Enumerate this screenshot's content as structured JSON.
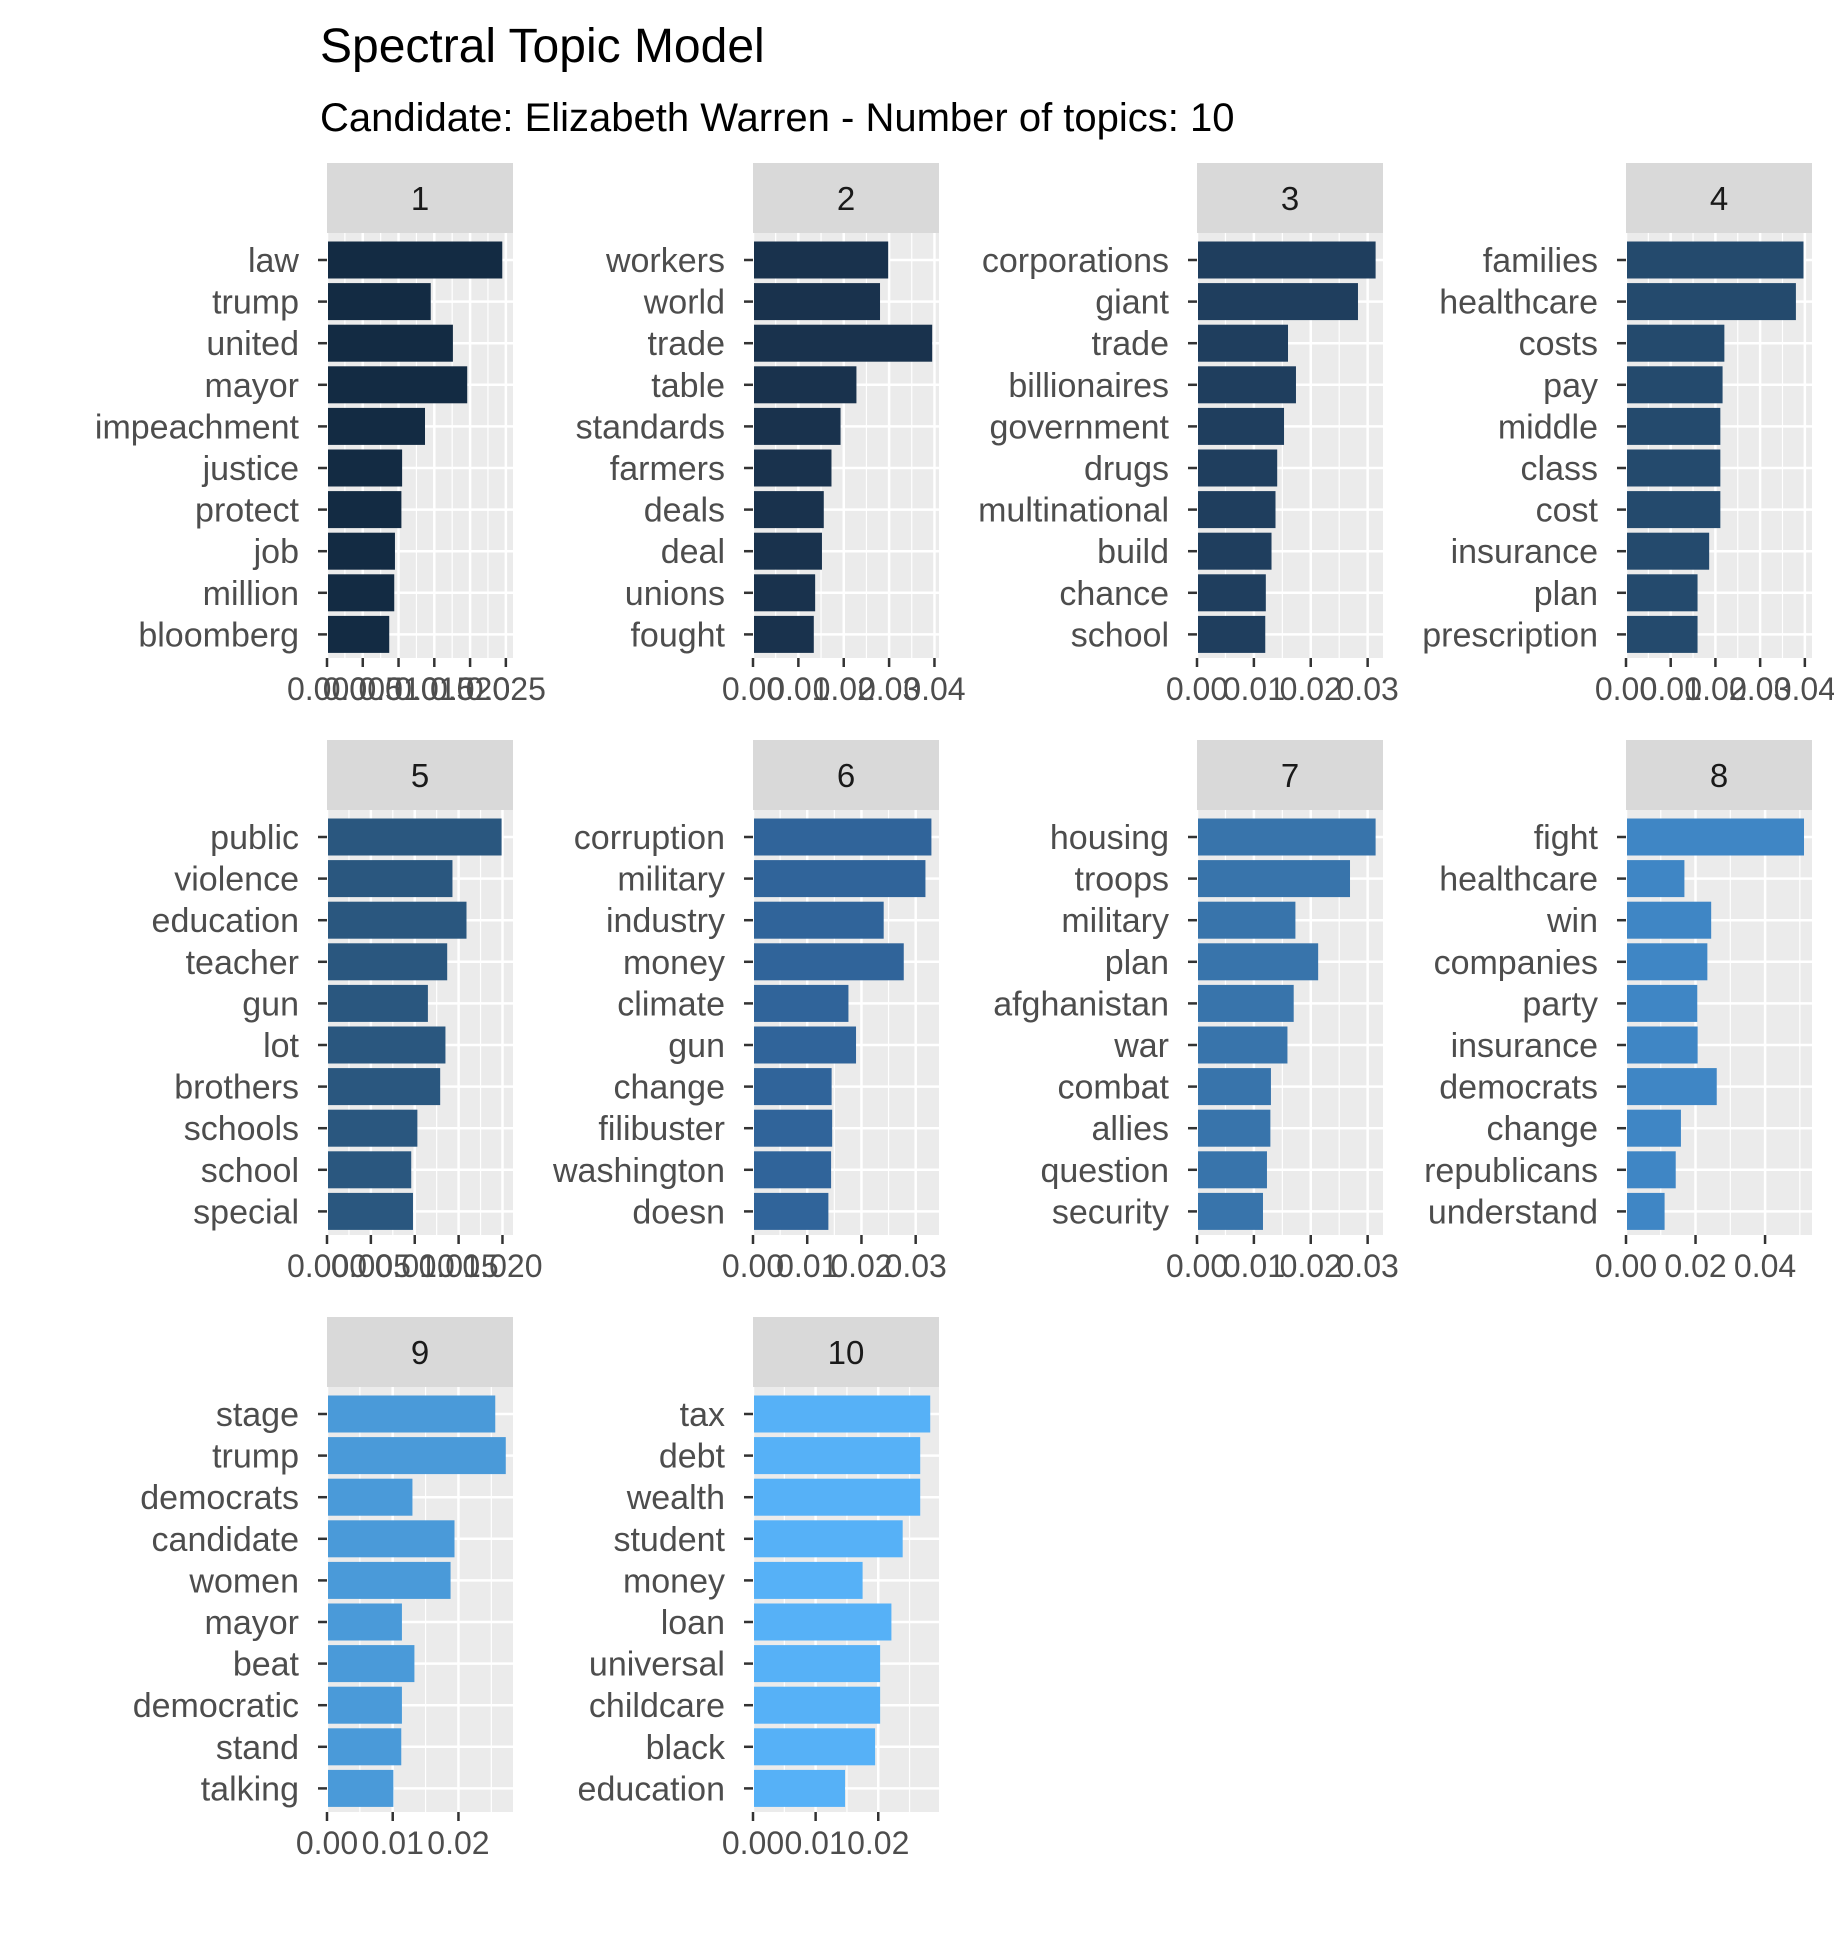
{
  "chart_data": {
    "type": "bar",
    "orientation": "horizontal",
    "facet": "wrap",
    "ncol": 4,
    "title": "Spectral Topic Model",
    "subtitle": "Candidate: Elizabeth Warren - Number of topics: 10",
    "grid": true,
    "legend": "none",
    "panels": [
      {
        "strip": "1",
        "color": "#132B43",
        "xlim": [
          0,
          0.026
        ],
        "ticks": [
          0,
          0.005,
          0.01,
          0.015,
          0.02,
          0.025
        ],
        "tick_labels": [
          "0.000",
          "0.005",
          "0.010",
          "0.015",
          "0.020",
          "0.025"
        ],
        "categories": [
          "law",
          "trump",
          "united",
          "mayor",
          "impeachment",
          "justice",
          "protect",
          "job",
          "million",
          "bloomberg"
        ],
        "values": [
          0.0245,
          0.0145,
          0.0176,
          0.0196,
          0.0137,
          0.0105,
          0.0104,
          0.0095,
          0.0094,
          0.0087
        ]
      },
      {
        "strip": "2",
        "color": "#19324D",
        "xlim": [
          0,
          0.041
        ],
        "ticks": [
          0,
          0.01,
          0.02,
          0.03,
          0.04
        ],
        "tick_labels": [
          "0.00",
          "0.01",
          "0.02",
          "0.03",
          "0.04"
        ],
        "categories": [
          "workers",
          "world",
          "trade",
          "table",
          "standards",
          "farmers",
          "deals",
          "deal",
          "unions",
          "fought"
        ],
        "values": [
          0.0298,
          0.028,
          0.0395,
          0.0228,
          0.0193,
          0.0173,
          0.0156,
          0.0152,
          0.0137,
          0.0134
        ]
      },
      {
        "strip": "3",
        "color": "#1F3E5E",
        "xlim": [
          0,
          0.0327
        ],
        "ticks": [
          0,
          0.01,
          0.02,
          0.03
        ],
        "tick_labels": [
          "0.00",
          "0.01",
          "0.02",
          "0.03"
        ],
        "categories": [
          "corporations",
          "giant",
          "trade",
          "billionaires",
          "government",
          "drugs",
          "multinational",
          "build",
          "chance",
          "school"
        ],
        "values": [
          0.0314,
          0.0283,
          0.016,
          0.0174,
          0.0153,
          0.0141,
          0.0138,
          0.0131,
          0.0121,
          0.012
        ]
      },
      {
        "strip": "4",
        "color": "#244A6D",
        "xlim": [
          0,
          0.0416
        ],
        "ticks": [
          0,
          0.01,
          0.02,
          0.03,
          0.04
        ],
        "tick_labels": [
          "0.00",
          "0.01",
          "0.02",
          "0.03",
          "0.04"
        ],
        "categories": [
          "families",
          "healthcare",
          "costs",
          "pay",
          "middle",
          "class",
          "cost",
          "insurance",
          "plan",
          "prescription"
        ],
        "values": [
          0.0397,
          0.038,
          0.022,
          0.0216,
          0.0211,
          0.0211,
          0.0211,
          0.0186,
          0.016,
          0.016
        ]
      },
      {
        "strip": "5",
        "color": "#2A577F",
        "xlim": [
          0,
          0.0212
        ],
        "ticks": [
          0,
          0.005,
          0.01,
          0.015,
          0.02
        ],
        "tick_labels": [
          "0.000",
          "0.005",
          "0.010",
          "0.015",
          "0.020"
        ],
        "categories": [
          "public",
          "violence",
          "education",
          "teacher",
          "gun",
          "lot",
          "brothers",
          "schools",
          "school",
          "special"
        ],
        "values": [
          0.0199,
          0.0143,
          0.0159,
          0.0137,
          0.0115,
          0.0135,
          0.0129,
          0.0103,
          0.0096,
          0.0098
        ]
      },
      {
        "strip": "6",
        "color": "#30649A",
        "xlim": [
          0,
          0.0343
        ],
        "ticks": [
          0,
          0.01,
          0.02,
          0.03
        ],
        "tick_labels": [
          "0.00",
          "0.01",
          "0.02",
          "0.03"
        ],
        "categories": [
          "corruption",
          "military",
          "industry",
          "money",
          "climate",
          "gun",
          "change",
          "filibuster",
          "washington",
          "doesn"
        ],
        "values": [
          0.0329,
          0.0318,
          0.0241,
          0.0278,
          0.0176,
          0.019,
          0.0145,
          0.0146,
          0.0144,
          0.0139
        ]
      },
      {
        "strip": "7",
        "color": "#3874AB",
        "xlim": [
          0,
          0.0327
        ],
        "ticks": [
          0,
          0.01,
          0.02,
          0.03
        ],
        "tick_labels": [
          "0.00",
          "0.01",
          "0.02",
          "0.03"
        ],
        "categories": [
          "housing",
          "troops",
          "military",
          "plan",
          "afghanistan",
          "war",
          "combat",
          "allies",
          "question",
          "security"
        ],
        "values": [
          0.0314,
          0.0269,
          0.0173,
          0.0213,
          0.017,
          0.0159,
          0.013,
          0.0129,
          0.0123,
          0.0116
        ]
      },
      {
        "strip": "8",
        "color": "#3F86C5",
        "xlim": [
          0,
          0.0535
        ],
        "ticks": [
          0,
          0.02,
          0.04
        ],
        "tick_labels": [
          "0.00",
          "0.02",
          "0.04"
        ],
        "categories": [
          "fight",
          "healthcare",
          "win",
          "companies",
          "party",
          "insurance",
          "democrats",
          "change",
          "republicans",
          "understand"
        ],
        "values": [
          0.0512,
          0.0168,
          0.0245,
          0.0234,
          0.0205,
          0.0206,
          0.0261,
          0.0158,
          0.0143,
          0.0111
        ]
      },
      {
        "strip": "9",
        "color": "#4A9AD9",
        "xlim": [
          0,
          0.0283
        ],
        "ticks": [
          0,
          0.01,
          0.02
        ],
        "tick_labels": [
          "0.00",
          "0.01",
          "0.02"
        ],
        "categories": [
          "stage",
          "trump",
          "democrats",
          "candidate",
          "women",
          "mayor",
          "beat",
          "democratic",
          "stand",
          "talking"
        ],
        "values": [
          0.0256,
          0.0272,
          0.013,
          0.0194,
          0.0188,
          0.0114,
          0.0133,
          0.0114,
          0.0113,
          0.0101
        ]
      },
      {
        "strip": "10",
        "color": "#56B1F7",
        "xlim": [
          0,
          0.0297
        ],
        "ticks": [
          0,
          0.01,
          0.02
        ],
        "tick_labels": [
          "0.00",
          "0.01",
          "0.02"
        ],
        "categories": [
          "tax",
          "debt",
          "wealth",
          "student",
          "money",
          "loan",
          "universal",
          "childcare",
          "black",
          "education"
        ],
        "values": [
          0.0283,
          0.0267,
          0.0267,
          0.0239,
          0.0175,
          0.0221,
          0.0203,
          0.0203,
          0.0195,
          0.0147
        ]
      }
    ]
  }
}
